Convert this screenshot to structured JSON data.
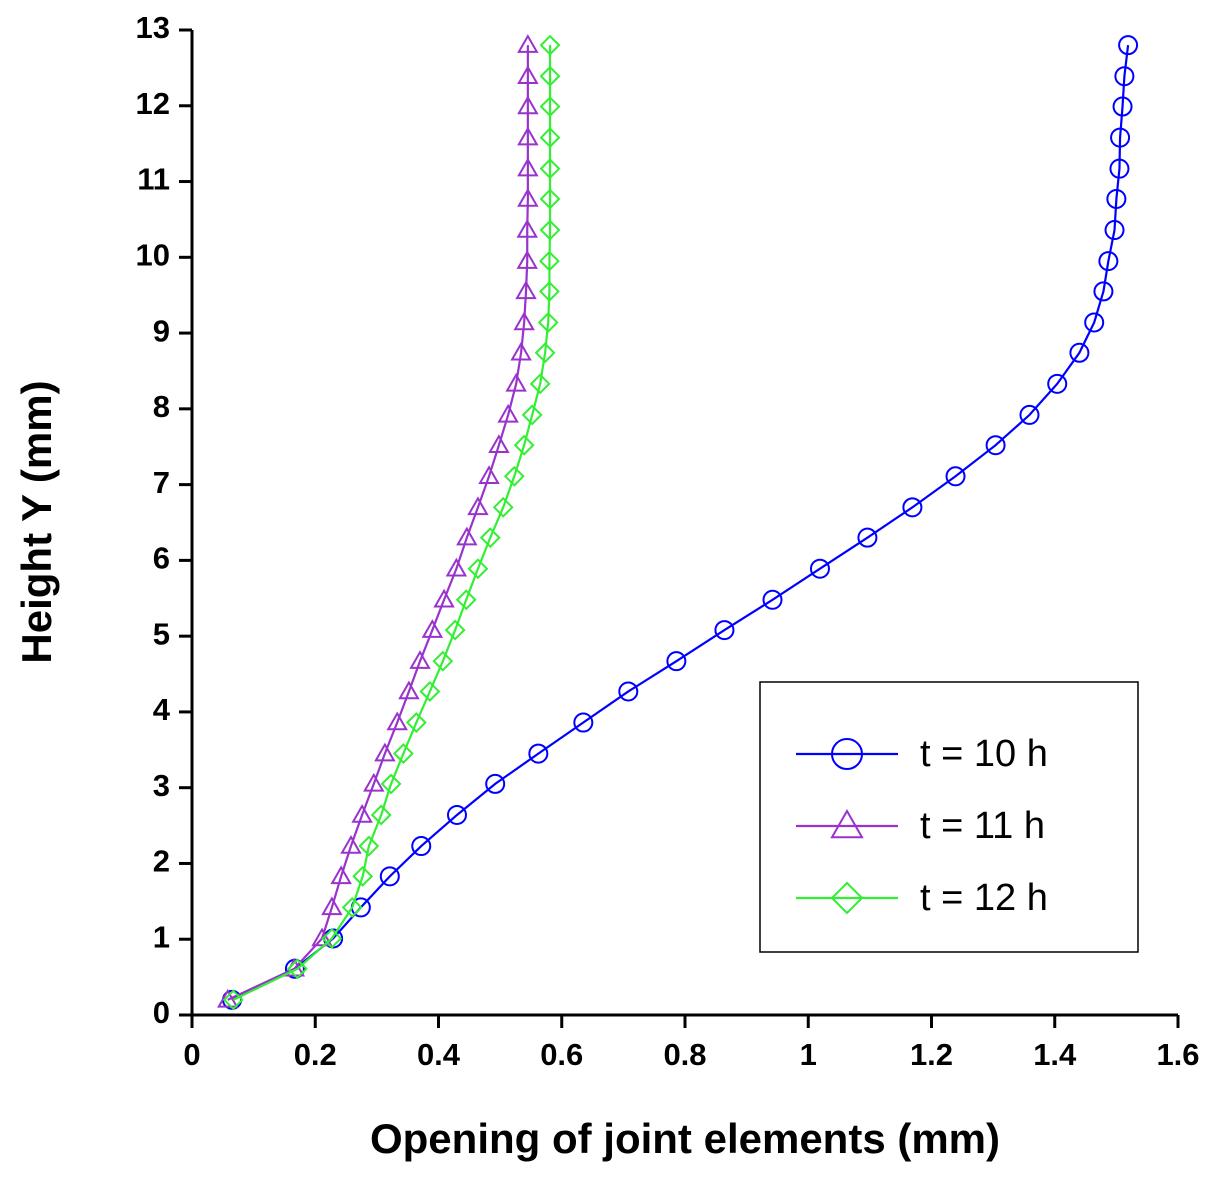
{
  "chart_data": {
    "type": "line",
    "x_label": "Opening of joint elements (mm)",
    "y_label": "Height Y (mm)",
    "xlim": [
      0,
      1.6
    ],
    "xticks": [
      0,
      0.2,
      0.4,
      0.6,
      0.8,
      1,
      1.2,
      1.4,
      1.6
    ],
    "ylim": [
      0,
      13
    ],
    "yticks": [
      0,
      1,
      2,
      3,
      4,
      5,
      6,
      7,
      8,
      9,
      10,
      11,
      12,
      13
    ],
    "legend": "lower right",
    "series": [
      {
        "name": "t = 10 h",
        "color": "#0000ff",
        "marker": "circle",
        "x": [
          0.065,
          0.167,
          0.229,
          0.274,
          0.321,
          0.372,
          0.43,
          0.492,
          0.562,
          0.635,
          0.708,
          0.786,
          0.864,
          0.942,
          1.019,
          1.096,
          1.169,
          1.239,
          1.304,
          1.359,
          1.404,
          1.44,
          1.464,
          1.479,
          1.487,
          1.497,
          1.5,
          1.505,
          1.506,
          1.51,
          1.513,
          1.519
        ],
        "values": [
          0.2,
          0.61,
          1.01,
          1.42,
          1.83,
          2.23,
          2.64,
          3.05,
          3.45,
          3.86,
          4.27,
          4.67,
          5.08,
          5.48,
          5.89,
          6.3,
          6.7,
          7.11,
          7.52,
          7.92,
          8.33,
          8.74,
          9.14,
          9.55,
          9.95,
          10.36,
          10.77,
          11.17,
          11.58,
          11.99,
          12.39,
          12.8
        ]
      },
      {
        "name": "t = 11 h",
        "color": "#9933cc",
        "marker": "triangle",
        "x": [
          0.058,
          0.166,
          0.211,
          0.227,
          0.242,
          0.258,
          0.276,
          0.295,
          0.313,
          0.333,
          0.352,
          0.37,
          0.39,
          0.409,
          0.429,
          0.446,
          0.464,
          0.482,
          0.498,
          0.513,
          0.526,
          0.534,
          0.539,
          0.542,
          0.544,
          0.544,
          0.545,
          0.545,
          0.545,
          0.545,
          0.545,
          0.545
        ],
        "values": [
          0.2,
          0.61,
          1.01,
          1.42,
          1.83,
          2.23,
          2.64,
          3.05,
          3.45,
          3.86,
          4.27,
          4.67,
          5.08,
          5.48,
          5.89,
          6.3,
          6.7,
          7.11,
          7.52,
          7.92,
          8.33,
          8.74,
          9.14,
          9.55,
          9.95,
          10.36,
          10.77,
          11.17,
          11.58,
          11.99,
          12.39,
          12.8
        ]
      },
      {
        "name": "t = 12 h",
        "color": "#33ee33",
        "marker": "diamond",
        "x": [
          0.067,
          0.171,
          0.227,
          0.26,
          0.277,
          0.287,
          0.307,
          0.323,
          0.343,
          0.364,
          0.386,
          0.407,
          0.427,
          0.445,
          0.464,
          0.484,
          0.505,
          0.523,
          0.539,
          0.552,
          0.565,
          0.573,
          0.578,
          0.58,
          0.58,
          0.581,
          0.581,
          0.581,
          0.581,
          0.581,
          0.581,
          0.581
        ],
        "values": [
          0.2,
          0.61,
          1.01,
          1.42,
          1.83,
          2.23,
          2.64,
          3.05,
          3.45,
          3.86,
          4.27,
          4.67,
          5.08,
          5.48,
          5.89,
          6.3,
          6.7,
          7.11,
          7.52,
          7.92,
          8.33,
          8.74,
          9.14,
          9.55,
          9.95,
          10.36,
          10.77,
          11.17,
          11.58,
          11.99,
          12.39,
          12.8
        ]
      }
    ]
  }
}
